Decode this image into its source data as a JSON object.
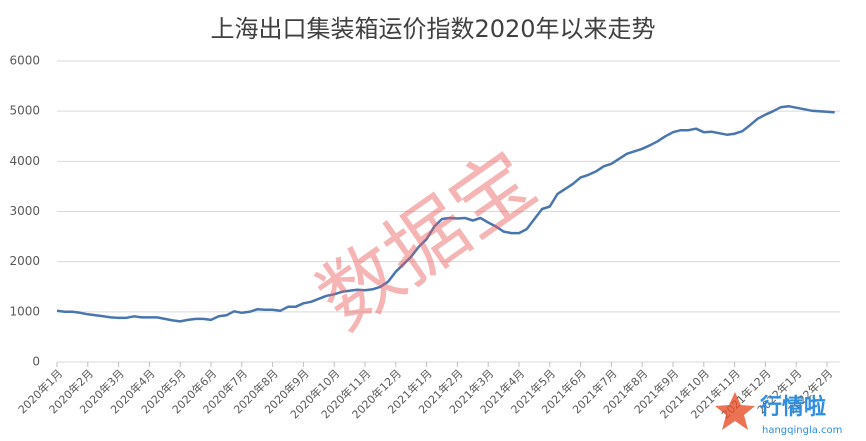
{
  "chart_data": {
    "type": "line",
    "title": "上海出口集装箱运价指数2020年以来走势",
    "categories": [
      "2020年1月",
      null,
      null,
      null,
      "2020年2月",
      null,
      null,
      null,
      "2020年3月",
      null,
      null,
      null,
      "2020年4月",
      null,
      null,
      null,
      "2020年5月",
      null,
      null,
      null,
      "2020年6月",
      null,
      null,
      null,
      "2020年7月",
      null,
      null,
      null,
      "2020年8月",
      null,
      null,
      null,
      "2020年9月",
      null,
      null,
      null,
      "2020年10月",
      null,
      null,
      null,
      "2020年11月",
      null,
      null,
      null,
      "2020年12月",
      null,
      null,
      null,
      "2021年1月",
      null,
      null,
      null,
      "2021年2月",
      null,
      null,
      null,
      "2021年3月",
      null,
      null,
      null,
      "2021年4月",
      null,
      null,
      null,
      "2021年5月",
      null,
      null,
      null,
      "2021年6月",
      null,
      null,
      null,
      "2021年7月",
      null,
      null,
      null,
      "2021年8月",
      null,
      null,
      null,
      "2021年9月",
      null,
      null,
      null,
      "2021年10月",
      null,
      null,
      null,
      "2021年11月",
      null,
      null,
      null,
      "2021年12月",
      null,
      null,
      null,
      "2022年1月",
      null,
      null,
      null,
      "2022年2月",
      null
    ],
    "series": [
      {
        "name": "上海出口集装箱运价指数",
        "color": "#4a76b0",
        "values": [
          1020,
          1000,
          1000,
          980,
          950,
          930,
          910,
          890,
          880,
          880,
          910,
          890,
          890,
          890,
          860,
          830,
          810,
          840,
          860,
          860,
          840,
          910,
          930,
          1010,
          980,
          1000,
          1050,
          1040,
          1040,
          1020,
          1100,
          1100,
          1170,
          1200,
          1260,
          1320,
          1350,
          1400,
          1420,
          1440,
          1430,
          1450,
          1500,
          1600,
          1800,
          1950,
          2100,
          2300,
          2450,
          2700,
          2850,
          2870,
          2860,
          2870,
          2820,
          2870,
          2780,
          2700,
          2600,
          2570,
          2570,
          2650,
          2850,
          3050,
          3100,
          3350,
          3450,
          3550,
          3680,
          3730,
          3800,
          3900,
          3950,
          4050,
          4150,
          4200,
          4250,
          4320,
          4400,
          4500,
          4580,
          4620,
          4620,
          4650,
          4580,
          4590,
          4560,
          4530,
          4550,
          4600,
          4720,
          4850,
          4930,
          5000,
          5080,
          5100,
          5070,
          5040,
          5010,
          5000,
          4990,
          4975
        ]
      }
    ],
    "ylim": [
      0,
      6000
    ],
    "yticks": [
      0,
      1000,
      2000,
      3000,
      4000,
      5000,
      6000
    ],
    "grid": true
  },
  "watermark": "数据宝",
  "logo": {
    "name": "行情啦",
    "url": "hangqingla.com"
  }
}
